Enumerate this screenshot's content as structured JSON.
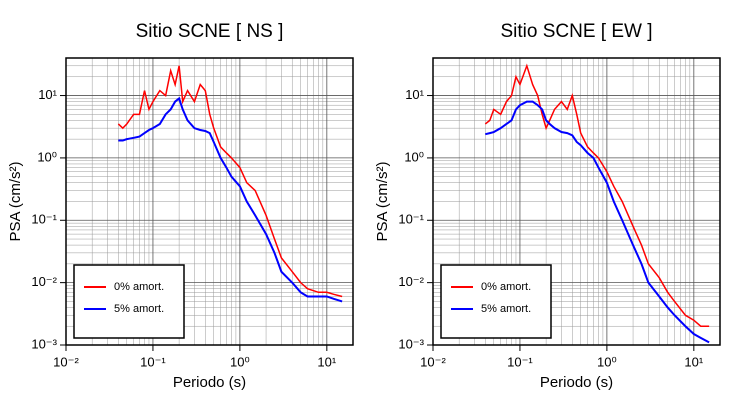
{
  "chart_data": [
    {
      "type": "line",
      "title": "Sitio SCNE [ NS ]",
      "x_label": "Periodo (s)",
      "y_label": "PSA (cm/s²)",
      "log_x": true,
      "log_y": true,
      "grid": true,
      "minor_grid": true,
      "legend": "lower left",
      "xlim": [
        0.01,
        20
      ],
      "ylim": [
        0.001,
        40
      ],
      "xticks": [
        {
          "value": 0.01,
          "label": "10⁻²"
        },
        {
          "value": 0.1,
          "label": "10⁻¹"
        },
        {
          "value": 1,
          "label": "10⁰"
        },
        {
          "value": 10,
          "label": "10¹"
        }
      ],
      "yticks": [
        {
          "value": 0.001,
          "label": "10⁻³"
        },
        {
          "value": 0.01,
          "label": "10⁻²"
        },
        {
          "value": 0.1,
          "label": "10⁻¹"
        },
        {
          "value": 1,
          "label": "10⁰"
        },
        {
          "value": 10,
          "label": "10¹"
        }
      ],
      "x": [
        0.04,
        0.045,
        0.05,
        0.06,
        0.07,
        0.08,
        0.09,
        0.1,
        0.12,
        0.14,
        0.16,
        0.18,
        0.2,
        0.22,
        0.25,
        0.3,
        0.35,
        0.4,
        0.45,
        0.5,
        0.6,
        0.7,
        0.8,
        1,
        1.2,
        1.5,
        2,
        2.5,
        3,
        4,
        5,
        6,
        8,
        10,
        12,
        15
      ],
      "series": [
        {
          "name": "0% amort.",
          "color": "#ff0000",
          "values": [
            3.5,
            3,
            3.5,
            5,
            5,
            12,
            6,
            8,
            12,
            10,
            25,
            15,
            30,
            8,
            12,
            8,
            15,
            12,
            5,
            3,
            1.5,
            1.2,
            1,
            0.7,
            0.4,
            0.3,
            0.12,
            0.05,
            0.025,
            0.015,
            0.01,
            0.008,
            0.007,
            0.007,
            0.0065,
            0.006
          ]
        },
        {
          "name": "5% amort.",
          "color": "#0000ff",
          "values": [
            1.9,
            1.9,
            2,
            2.1,
            2.2,
            2.5,
            2.8,
            3,
            3.5,
            5,
            6,
            8,
            9,
            6,
            4,
            3,
            2.8,
            2.7,
            2.5,
            1.8,
            1,
            0.7,
            0.5,
            0.35,
            0.2,
            0.12,
            0.06,
            0.03,
            0.015,
            0.01,
            0.007,
            0.006,
            0.006,
            0.006,
            0.0055,
            0.005
          ]
        }
      ]
    },
    {
      "type": "line",
      "title": "Sitio SCNE [ EW ]",
      "x_label": "Periodo (s)",
      "y_label": "PSA (cm/s²)",
      "log_x": true,
      "log_y": true,
      "grid": true,
      "minor_grid": true,
      "legend": "lower left",
      "xlim": [
        0.01,
        20
      ],
      "ylim": [
        0.001,
        40
      ],
      "xticks": [
        {
          "value": 0.01,
          "label": "10⁻²"
        },
        {
          "value": 0.1,
          "label": "10⁻¹"
        },
        {
          "value": 1,
          "label": "10⁰"
        },
        {
          "value": 10,
          "label": "10¹"
        }
      ],
      "yticks": [
        {
          "value": 0.001,
          "label": "10⁻³"
        },
        {
          "value": 0.01,
          "label": "10⁻²"
        },
        {
          "value": 0.1,
          "label": "10⁻¹"
        },
        {
          "value": 1,
          "label": "10⁰"
        },
        {
          "value": 10,
          "label": "10¹"
        }
      ],
      "x": [
        0.04,
        0.045,
        0.05,
        0.06,
        0.07,
        0.08,
        0.09,
        0.1,
        0.12,
        0.14,
        0.16,
        0.18,
        0.2,
        0.22,
        0.25,
        0.3,
        0.35,
        0.4,
        0.45,
        0.5,
        0.6,
        0.7,
        0.8,
        1,
        1.2,
        1.5,
        2,
        2.5,
        3,
        4,
        5,
        6,
        8,
        10,
        12,
        15
      ],
      "series": [
        {
          "name": "0% amort.",
          "color": "#ff0000",
          "values": [
            3.5,
            4,
            6,
            5,
            8,
            10,
            20,
            15,
            30,
            15,
            10,
            5,
            3,
            4,
            6,
            8,
            6,
            10,
            5,
            2.5,
            1.5,
            1.2,
            1,
            0.6,
            0.35,
            0.2,
            0.08,
            0.04,
            0.02,
            0.012,
            0.007,
            0.005,
            0.003,
            0.0025,
            0.002,
            0.002
          ]
        },
        {
          "name": "5% amort.",
          "color": "#0000ff",
          "values": [
            2.4,
            2.5,
            2.6,
            3,
            3.5,
            4,
            6,
            7,
            8,
            8,
            7,
            6,
            4,
            3.5,
            3,
            2.6,
            2.5,
            2.3,
            1.8,
            1.6,
            1.2,
            1,
            0.7,
            0.4,
            0.2,
            0.1,
            0.04,
            0.02,
            0.01,
            0.006,
            0.004,
            0.003,
            0.002,
            0.0015,
            0.0013,
            0.0011
          ]
        }
      ]
    }
  ]
}
